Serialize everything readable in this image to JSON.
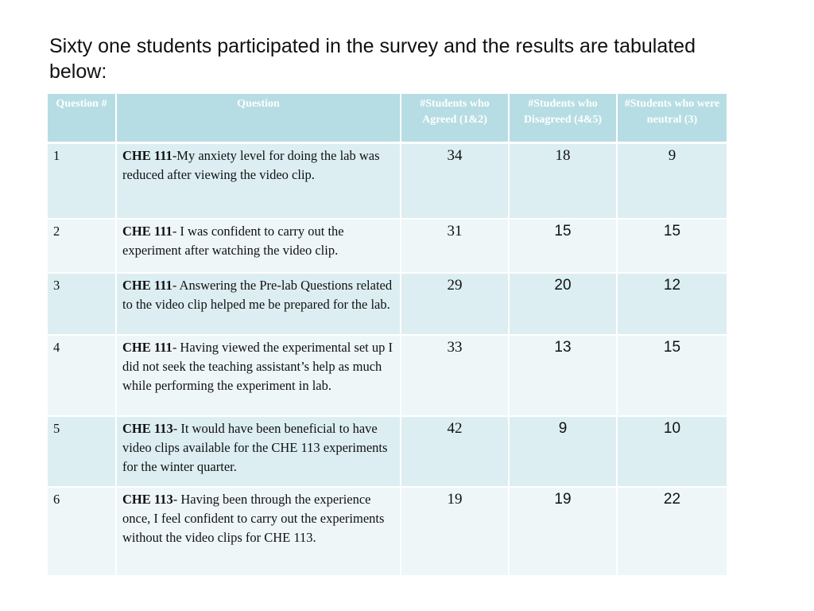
{
  "intro_text": "Sixty one students participated in the survey and the results are tabulated below:",
  "table": {
    "headers": [
      "Question #",
      "Question",
      "#Students who Agreed (1&2)",
      "#Students who Disagreed (4&5)",
      "#Students who were neutral (3)"
    ],
    "rows": [
      {
        "num": "1",
        "course": "CHE 111",
        "text": "-My anxiety level for doing the lab was reduced after viewing the video clip.",
        "agreed": "34",
        "disagreed": "18",
        "neutral": "9"
      },
      {
        "num": "2",
        "course": "CHE 111",
        "text": "- I was confident to carry out the experiment after watching the video clip.",
        "agreed": "31",
        "disagreed": "15",
        "neutral": "15"
      },
      {
        "num": "3",
        "course": "CHE 111",
        "text": "- Answering the Pre-lab Questions related to the video clip helped me be prepared for the lab.",
        "agreed": "29",
        "disagreed": "20",
        "neutral": "12"
      },
      {
        "num": "4",
        "course": "CHE 111",
        "text": "- Having viewed the experimental set up I did not seek the teaching assistant’s help as much while performing the experiment in lab.",
        "agreed": "33",
        "disagreed": "13",
        "neutral": "15"
      },
      {
        "num": "5",
        "course": "CHE 113",
        "text": "- It would have been beneficial to have video clips available for the CHE 113 experiments for the winter quarter.",
        "agreed": "42",
        "disagreed": "9",
        "neutral": "10"
      },
      {
        "num": "6",
        "course": "CHE 113",
        "text": "- Having been through the experience once, I feel confident to carry out the experiments without the video clips for CHE 113.",
        "agreed": "19",
        "disagreed": "19",
        "neutral": "22"
      }
    ]
  },
  "colors": {
    "header_bg": "#b6dde3",
    "row_dark": "#dceef2",
    "row_light": "#eef6f8"
  }
}
